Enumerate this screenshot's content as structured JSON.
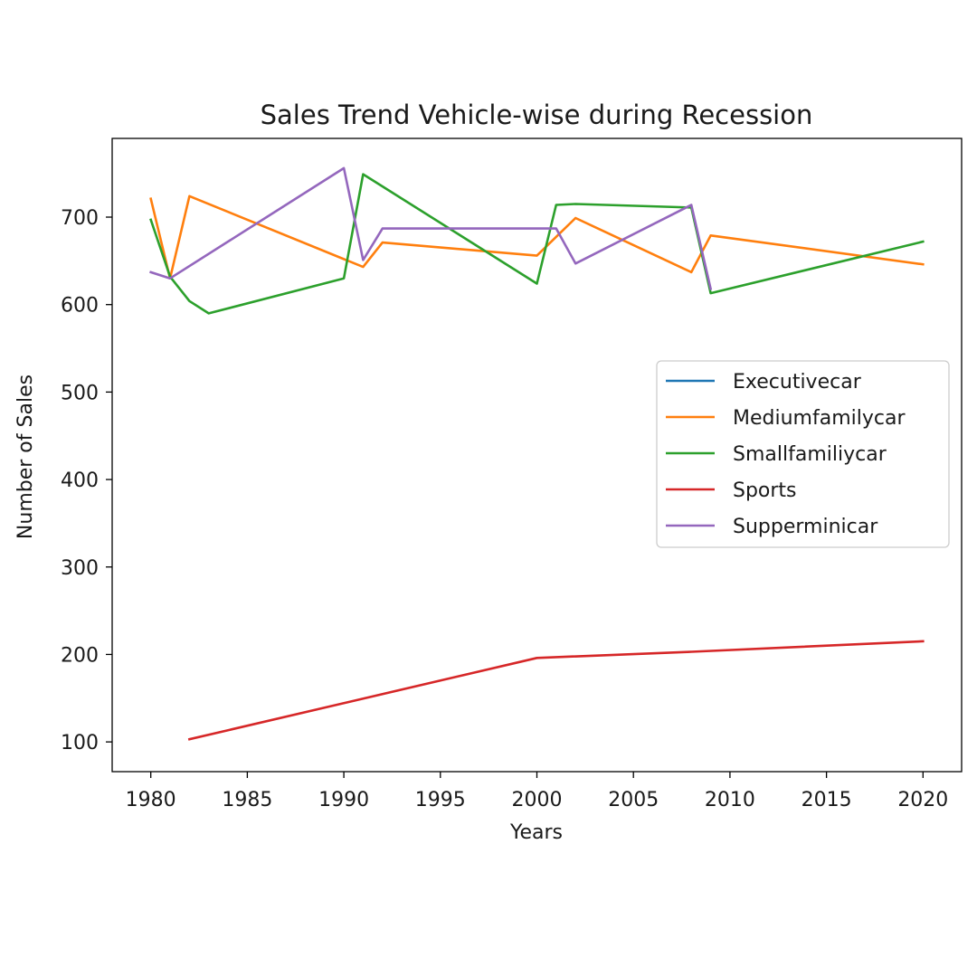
{
  "chart_data": {
    "type": "line",
    "title": "Sales Trend Vehicle-wise during Recession",
    "xlabel": "Years",
    "ylabel": "Number of Sales",
    "xlim": [
      1978,
      2022
    ],
    "ylim": [
      66,
      790
    ],
    "x_ticks": [
      1980,
      1985,
      1990,
      1995,
      2000,
      2005,
      2010,
      2015,
      2020
    ],
    "y_ticks": [
      100,
      200,
      300,
      400,
      500,
      600,
      700
    ],
    "grid": false,
    "legend_position": "center-right",
    "series": [
      {
        "name": "Executivecar",
        "color": "#1f77b4",
        "points": []
      },
      {
        "name": "Mediumfamilycar",
        "color": "#ff7f0e",
        "points": [
          [
            1980,
            721
          ],
          [
            1981,
            630
          ],
          [
            1982,
            724
          ],
          [
            1991,
            643
          ],
          [
            1992,
            671
          ],
          [
            2000,
            656
          ],
          [
            2002,
            699
          ],
          [
            2008,
            637
          ],
          [
            2009,
            679
          ],
          [
            2020,
            646
          ]
        ]
      },
      {
        "name": "Smallfamiliycar",
        "color": "#2ca02c",
        "points": [
          [
            1980,
            697
          ],
          [
            1981,
            632
          ],
          [
            1982,
            604
          ],
          [
            1983,
            590
          ],
          [
            1990,
            630
          ],
          [
            1991,
            749
          ],
          [
            2000,
            624
          ],
          [
            2001,
            714
          ],
          [
            2002,
            715
          ],
          [
            2008,
            711
          ],
          [
            2009,
            613
          ],
          [
            2020,
            672
          ]
        ]
      },
      {
        "name": "Sports",
        "color": "#d62728",
        "points": [
          [
            1982,
            103
          ],
          [
            2000,
            196
          ],
          [
            2008,
            203
          ],
          [
            2020,
            215
          ]
        ]
      },
      {
        "name": "Supperminicar",
        "color": "#9467bd",
        "points": [
          [
            1980,
            637
          ],
          [
            1981,
            630
          ],
          [
            1990,
            756
          ],
          [
            1991,
            651
          ],
          [
            1992,
            687
          ],
          [
            2001,
            687
          ],
          [
            2002,
            647
          ],
          [
            2008,
            714
          ],
          [
            2009,
            618
          ]
        ]
      }
    ]
  }
}
